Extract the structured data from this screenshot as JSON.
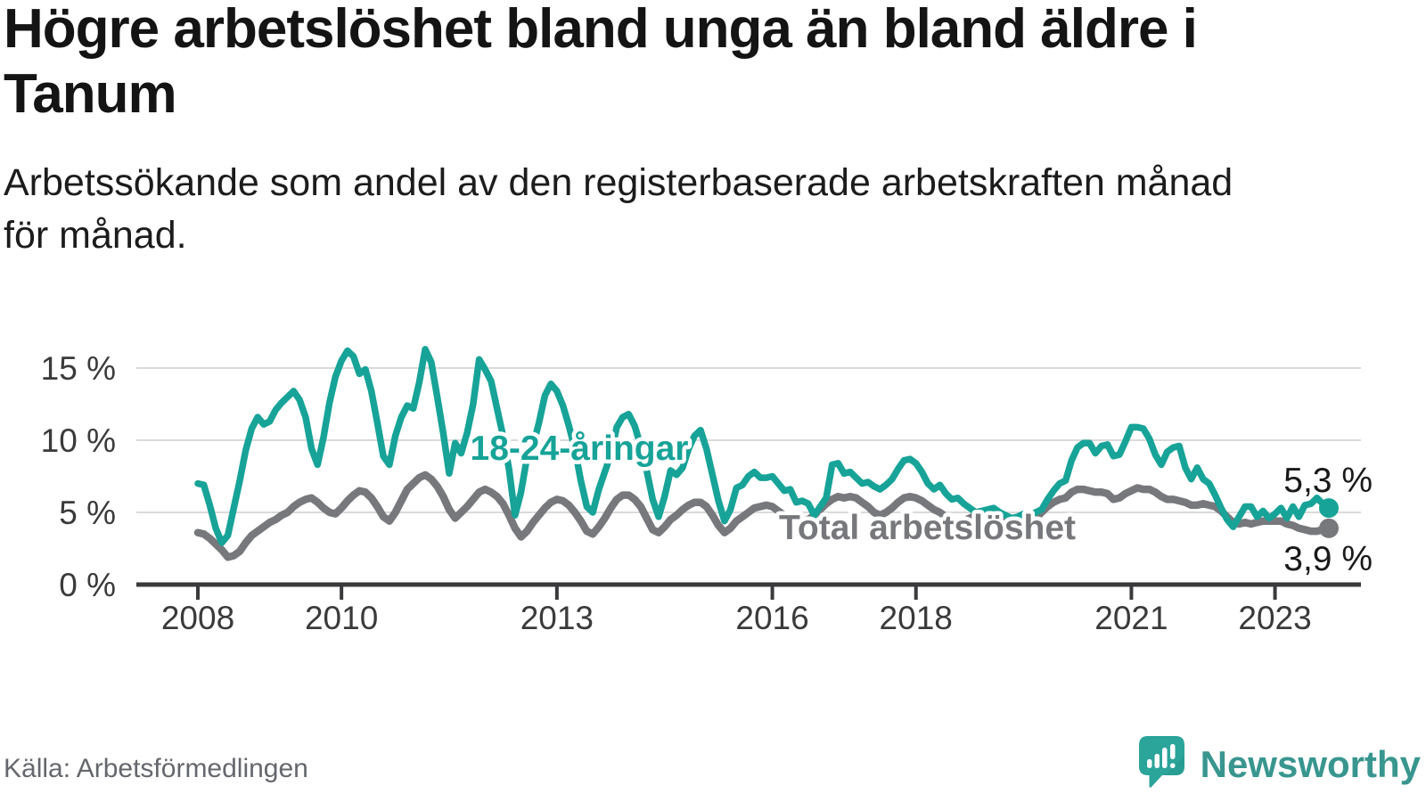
{
  "header": {
    "title_line1": "Högre arbetslöshet bland unga än bland äldre i",
    "title_line2": "Tanum",
    "subtitle_line1": "Arbetssökande som andel av den registerbaserade arbetskraften månad",
    "subtitle_line2": "för månad."
  },
  "footer": {
    "source": "Källa: Arbetsförmedlingen",
    "brand": "Newsworthy",
    "brand_icon": "speech-bubble-bar-chart-icon",
    "brand_color": "#38968f"
  },
  "colors": {
    "youth_line": "#17a398",
    "total_line": "#77787c",
    "grid": "#dadada",
    "axis": "#3a3a3c",
    "value_label": "#191919"
  },
  "chart_data": {
    "type": "line",
    "unit": "%",
    "frequency": "monthly",
    "x_start": "2008-01",
    "x_end": "2023-10",
    "ylim": [
      0,
      17
    ],
    "grid": "horizontal",
    "yticks": [
      {
        "value": 0,
        "label": "0 %"
      },
      {
        "value": 5,
        "label": "5 %"
      },
      {
        "value": 10,
        "label": "10 %"
      },
      {
        "value": 15,
        "label": "15 %"
      }
    ],
    "xticks": [
      2008,
      2010,
      2013,
      2016,
      2018,
      2021,
      2023
    ],
    "series": [
      {
        "name": "18-24-åringar",
        "color": "#17a398",
        "end_label": "5,3 %",
        "end_value": 5.3,
        "values": [
          7.0,
          6.9,
          5.5,
          3.9,
          2.9,
          3.4,
          5.3,
          7.2,
          9.3,
          10.8,
          11.6,
          11.1,
          11.3,
          12.1,
          12.6,
          13.0,
          13.4,
          12.8,
          11.6,
          9.4,
          8.3,
          10.2,
          12.6,
          14.4,
          15.5,
          16.2,
          15.8,
          14.6,
          14.9,
          13.4,
          11.2,
          8.9,
          8.3,
          10.3,
          11.6,
          12.4,
          12.2,
          14.0,
          16.3,
          15.4,
          13.0,
          10.5,
          7.7,
          9.8,
          9.1,
          10.5,
          12.5,
          15.6,
          14.9,
          14.1,
          12.2,
          10.3,
          8.0,
          4.8,
          6.4,
          8.8,
          9.6,
          11.2,
          13.1,
          13.9,
          13.4,
          12.4,
          11.0,
          9.4,
          7.2,
          5.4,
          5.0,
          6.6,
          7.8,
          9.0,
          10.9,
          11.6,
          11.8,
          11.0,
          9.6,
          7.9,
          5.9,
          4.7,
          6.1,
          7.9,
          7.6,
          8.1,
          9.4,
          10.3,
          10.7,
          9.4,
          7.6,
          5.8,
          4.4,
          5.2,
          6.7,
          6.9,
          7.5,
          7.8,
          7.4,
          7.4,
          7.5,
          7.0,
          6.5,
          6.6,
          5.7,
          5.8,
          5.6,
          4.8,
          5.4,
          6.0,
          8.3,
          8.4,
          7.7,
          7.8,
          7.4,
          7.0,
          7.1,
          6.8,
          6.6,
          6.9,
          7.3,
          8.0,
          8.6,
          8.7,
          8.4,
          7.8,
          7.0,
          6.6,
          6.9,
          6.3,
          5.9,
          6.0,
          5.6,
          5.3,
          5.0,
          5.1,
          5.2,
          5.3,
          5.0,
          4.8,
          4.6,
          4.7,
          4.9,
          4.8,
          5.0,
          5.2,
          5.9,
          6.5,
          7.0,
          7.2,
          8.6,
          9.5,
          9.8,
          9.8,
          9.1,
          9.6,
          9.7,
          8.9,
          9.0,
          9.9,
          10.9,
          10.9,
          10.8,
          10.1,
          9.0,
          8.3,
          9.2,
          9.5,
          9.6,
          8.1,
          7.3,
          8.1,
          7.3,
          7.0,
          6.2,
          5.3,
          4.5,
          4.0,
          4.7,
          5.4,
          5.4,
          4.7,
          5.1,
          4.6,
          4.9,
          5.3,
          4.6,
          5.4,
          4.7,
          5.5,
          5.6,
          6.0,
          5.6,
          5.3
        ]
      },
      {
        "name": "Total arbetslöshet",
        "color": "#77787c",
        "end_label": "3,9 %",
        "end_value": 3.9,
        "values": [
          3.6,
          3.5,
          3.2,
          2.8,
          2.4,
          1.9,
          2.0,
          2.3,
          2.9,
          3.4,
          3.7,
          4.0,
          4.3,
          4.5,
          4.8,
          5.0,
          5.4,
          5.7,
          5.9,
          6.0,
          5.7,
          5.3,
          5.0,
          4.9,
          5.3,
          5.8,
          6.2,
          6.5,
          6.4,
          6.0,
          5.4,
          4.7,
          4.4,
          5.0,
          5.8,
          6.6,
          7.0,
          7.4,
          7.6,
          7.3,
          6.8,
          6.1,
          5.2,
          4.6,
          5.0,
          5.4,
          5.9,
          6.4,
          6.6,
          6.4,
          6.1,
          5.6,
          4.8,
          3.9,
          3.3,
          3.7,
          4.3,
          4.8,
          5.3,
          5.7,
          5.9,
          5.8,
          5.5,
          5.0,
          4.4,
          3.7,
          3.5,
          4.0,
          4.6,
          5.3,
          5.9,
          6.2,
          6.2,
          5.9,
          5.4,
          4.6,
          3.8,
          3.6,
          4.0,
          4.5,
          4.8,
          5.2,
          5.5,
          5.7,
          5.7,
          5.4,
          4.8,
          4.1,
          3.6,
          3.9,
          4.4,
          4.7,
          5.0,
          5.3,
          5.4,
          5.5,
          5.4,
          5.1,
          4.8,
          4.7,
          4.5,
          4.4,
          4.5,
          4.8,
          5.2,
          5.6,
          5.9,
          6.1,
          6.0,
          6.1,
          6.0,
          5.7,
          5.4,
          5.0,
          4.8,
          5.0,
          5.3,
          5.7,
          6.0,
          6.1,
          6.0,
          5.8,
          5.5,
          5.2,
          5.0,
          4.7,
          4.4,
          4.3,
          4.4,
          4.6,
          4.8,
          4.9,
          5.0,
          4.9,
          4.7,
          4.5,
          4.3,
          4.2,
          4.3,
          4.4,
          4.6,
          5.0,
          5.4,
          5.7,
          5.9,
          6.0,
          6.4,
          6.6,
          6.6,
          6.5,
          6.4,
          6.4,
          6.3,
          5.9,
          6.0,
          6.3,
          6.5,
          6.7,
          6.6,
          6.6,
          6.4,
          6.1,
          5.9,
          5.9,
          5.8,
          5.7,
          5.5,
          5.5,
          5.6,
          5.5,
          5.4,
          5.1,
          4.7,
          4.3,
          4.2,
          4.3,
          4.2,
          4.3,
          4.4,
          4.4,
          4.4,
          4.4,
          4.2,
          4.1,
          3.9,
          3.8,
          3.7,
          3.7,
          3.8,
          3.9
        ]
      }
    ]
  }
}
